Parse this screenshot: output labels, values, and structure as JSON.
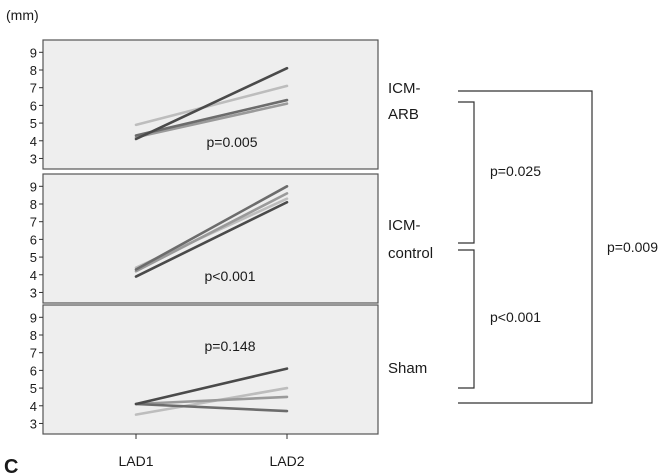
{
  "unit_label": "(mm)",
  "panel_letter": "C",
  "colors": {
    "panel_bg": "#eeeeee",
    "panel_border": "#555555",
    "series": [
      "#4a4a4a",
      "#6c6c6c",
      "#9a9a9a",
      "#bdbdbd"
    ]
  },
  "chart_data": {
    "type": "line",
    "x": [
      "LAD1",
      "LAD2"
    ],
    "ylim": [
      2.8,
      9.3
    ],
    "yticks": [
      3,
      4,
      5,
      6,
      7,
      8,
      9
    ],
    "grid": false,
    "panels": [
      {
        "group": "ICM-ARB",
        "group_lines": [
          "ICM-",
          "ARB"
        ],
        "p_label": "p=0.005",
        "series": [
          {
            "values": [
              4.1,
              8.1
            ]
          },
          {
            "values": [
              4.3,
              6.3
            ]
          },
          {
            "values": [
              4.2,
              6.1
            ]
          },
          {
            "values": [
              4.9,
              7.1
            ]
          }
        ]
      },
      {
        "group": "ICM-control",
        "group_lines": [
          "ICM-",
          "control"
        ],
        "p_label": "p<0.001",
        "series": [
          {
            "values": [
              3.9,
              8.1
            ]
          },
          {
            "values": [
              4.3,
              9.0
            ]
          },
          {
            "values": [
              4.2,
              8.6
            ]
          },
          {
            "values": [
              4.4,
              8.3
            ]
          }
        ]
      },
      {
        "group": "Sham",
        "group_lines": [
          "Sham"
        ],
        "p_label": "p=0.148",
        "series": [
          {
            "values": [
              4.1,
              6.1
            ]
          },
          {
            "values": [
              4.1,
              3.7
            ]
          },
          {
            "values": [
              4.1,
              4.5
            ]
          },
          {
            "values": [
              3.5,
              5.0
            ]
          }
        ]
      }
    ],
    "comparisons": [
      {
        "label": "p=0.025",
        "between": [
          "ICM-ARB",
          "ICM-control"
        ]
      },
      {
        "label": "p<0.001",
        "between": [
          "ICM-control",
          "Sham"
        ]
      },
      {
        "label": "p=0.009",
        "between": [
          "ICM-ARB",
          "Sham"
        ]
      }
    ]
  }
}
